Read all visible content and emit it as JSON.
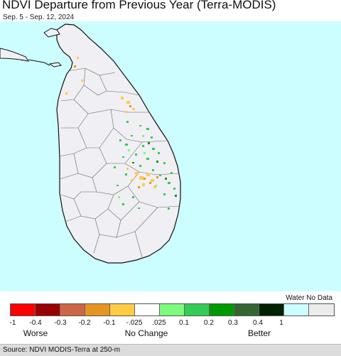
{
  "header": {
    "title": "NDVI Departure from Previous Year (Terra-MODIS)",
    "subtitle": "Sep. 5 - Sep. 12, 2024"
  },
  "map": {
    "region": "Sri Lanka",
    "colors": {
      "water": "#ccfeff",
      "land": "#f0eff3",
      "border": "#111111"
    }
  },
  "legend": {
    "header": "Water No Data",
    "colors": [
      "#ff0000",
      "#990000",
      "#cc6644",
      "#e69422",
      "#ffcc44",
      "#ffffff",
      "#7dfb7d",
      "#33cc55",
      "#009900",
      "#336633",
      "#002200",
      "#ccffff",
      "#ececec"
    ],
    "ticks": [
      "-1",
      "-0.4",
      "-0.3",
      "-0.2",
      "-0.1",
      "-.025",
      ".025",
      "0.1",
      "0.2",
      "0.3",
      "0.4",
      "1"
    ],
    "categories": [
      "Worse",
      "No Change",
      "Better"
    ]
  },
  "footer": {
    "source": "Source: NDVI MODIS-Terra at 250-m"
  }
}
